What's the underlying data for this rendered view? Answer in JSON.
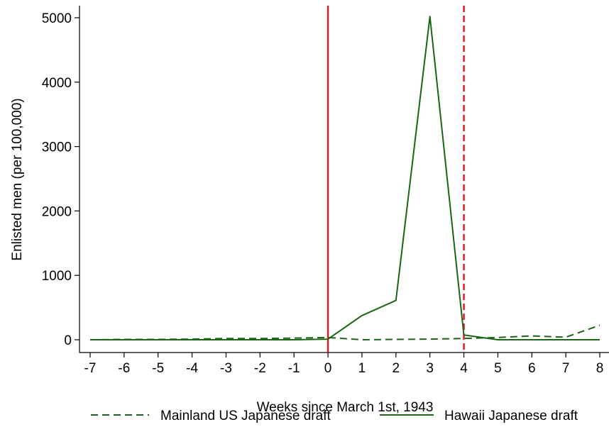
{
  "chart_data": {
    "type": "line",
    "title": "",
    "xlabel": "Weeks since March 1st, 1943",
    "ylabel": "Enlisted men (per 100,000)",
    "x": [
      -7,
      -6,
      -5,
      -4,
      -3,
      -2,
      -1,
      0,
      1,
      2,
      3,
      4,
      5,
      6,
      7,
      8
    ],
    "xlim": [
      -7,
      8
    ],
    "ylim": [
      0,
      5000
    ],
    "xticks": [
      -7,
      -6,
      -5,
      -4,
      -3,
      -2,
      -1,
      0,
      1,
      2,
      3,
      4,
      5,
      6,
      7,
      8
    ],
    "yticks": [
      0,
      1000,
      2000,
      3000,
      4000,
      5000
    ],
    "grid": false,
    "legend_position": "bottom",
    "series": [
      {
        "name": "Mainland US Japanese draft",
        "style": "dashed",
        "color": "#1a6614",
        "values": [
          0,
          5,
          5,
          10,
          20,
          20,
          25,
          35,
          0,
          5,
          10,
          20,
          35,
          60,
          40,
          225
        ]
      },
      {
        "name": "Hawaii Japanese draft",
        "style": "solid",
        "color": "#1a6614",
        "values": [
          0,
          0,
          0,
          0,
          0,
          0,
          0,
          10,
          375,
          610,
          5020,
          75,
          0,
          0,
          0,
          0
        ]
      }
    ],
    "reference_lines": [
      {
        "x": 0,
        "style": "solid",
        "color": "#e8141c"
      },
      {
        "x": 4,
        "style": "dashed",
        "color": "#e8141c"
      }
    ]
  }
}
